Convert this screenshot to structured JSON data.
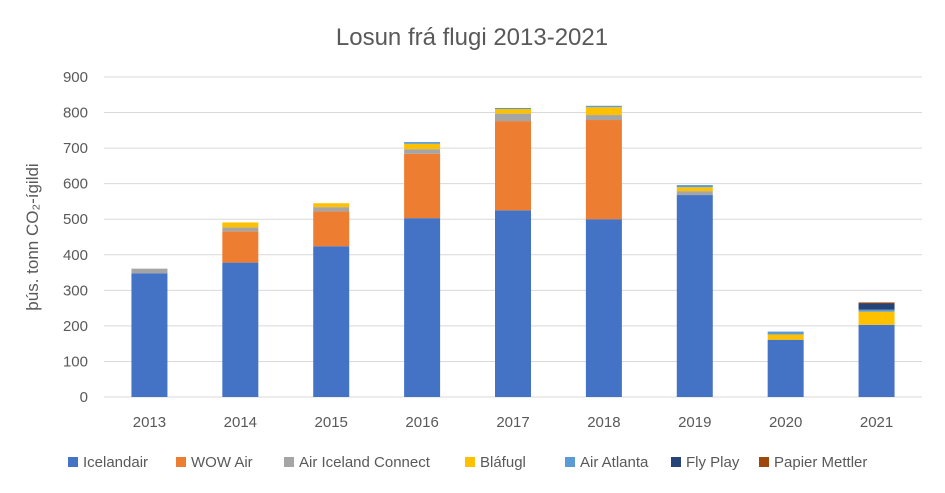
{
  "chart_data": {
    "type": "bar",
    "stacked": true,
    "title": "Losun frá flugi 2013-2021",
    "xlabel": "",
    "ylabel": "þús. tonn CO₂-ígildi",
    "ylim": [
      0,
      900
    ],
    "yticks": [
      0,
      100,
      200,
      300,
      400,
      500,
      600,
      700,
      800,
      900
    ],
    "grid": true,
    "legend_position": "bottom",
    "categories": [
      "2013",
      "2014",
      "2015",
      "2016",
      "2017",
      "2018",
      "2019",
      "2020",
      "2021"
    ],
    "series": [
      {
        "name": "Icelandair",
        "color": "#4472C4",
        "values": [
          348,
          378,
          424,
          503,
          525,
          500,
          568,
          161,
          203
        ]
      },
      {
        "name": "WOW Air",
        "color": "#ED7D31",
        "values": [
          0,
          88,
          98,
          181,
          251,
          279,
          0,
          0,
          0
        ]
      },
      {
        "name": "Air Iceland Connect",
        "color": "#A5A5A5",
        "values": [
          13,
          11,
          12,
          13,
          21,
          14,
          11,
          0,
          0
        ]
      },
      {
        "name": "Bláfugl",
        "color": "#FFC000",
        "values": [
          0,
          14,
          11,
          15,
          13,
          22,
          11,
          15,
          37
        ]
      },
      {
        "name": "Air Atlanta",
        "color": "#5B9BD5",
        "values": [
          0,
          0,
          0,
          5,
          3,
          4,
          6,
          8,
          6
        ]
      },
      {
        "name": "Fly Play",
        "color": "#264478",
        "values": [
          0,
          0,
          0,
          0,
          0,
          0,
          0,
          0,
          17
        ]
      },
      {
        "name": "Papier Mettler",
        "color": "#9E480E",
        "values": [
          0,
          0,
          0,
          0,
          0,
          0,
          0,
          0,
          3
        ]
      }
    ]
  }
}
